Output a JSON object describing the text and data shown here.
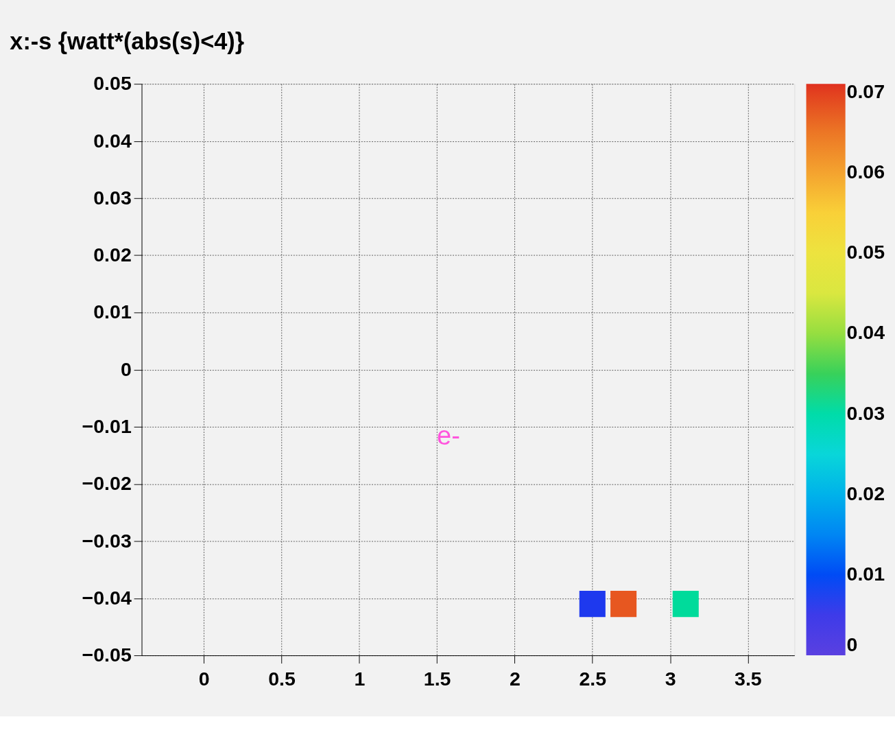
{
  "chart_data": {
    "type": "scatter",
    "title": "x:-s {watt*(abs(s)<4)}",
    "x": [
      2.5,
      2.7,
      3.1
    ],
    "values": [
      -0.041,
      -0.041,
      -0.041
    ],
    "cvalues": [
      0.008,
      0.068,
      0.031
    ],
    "marker": "square",
    "clim": [
      0,
      0.071
    ],
    "cticks": [
      0,
      0.01,
      0.02,
      0.03,
      0.04,
      0.05,
      0.06,
      0.07
    ],
    "xlim": [
      -0.4,
      3.8
    ],
    "xticks": [
      0,
      0.5,
      1,
      1.5,
      2,
      2.5,
      3,
      3.5
    ],
    "ylim": [
      -0.05,
      0.05
    ],
    "yticks": [
      -0.05,
      -0.04,
      -0.03,
      -0.02,
      -0.01,
      0,
      0.01,
      0.02,
      0.03,
      0.04,
      0.05
    ],
    "grid": true,
    "annotations": [
      "e-"
    ]
  }
}
